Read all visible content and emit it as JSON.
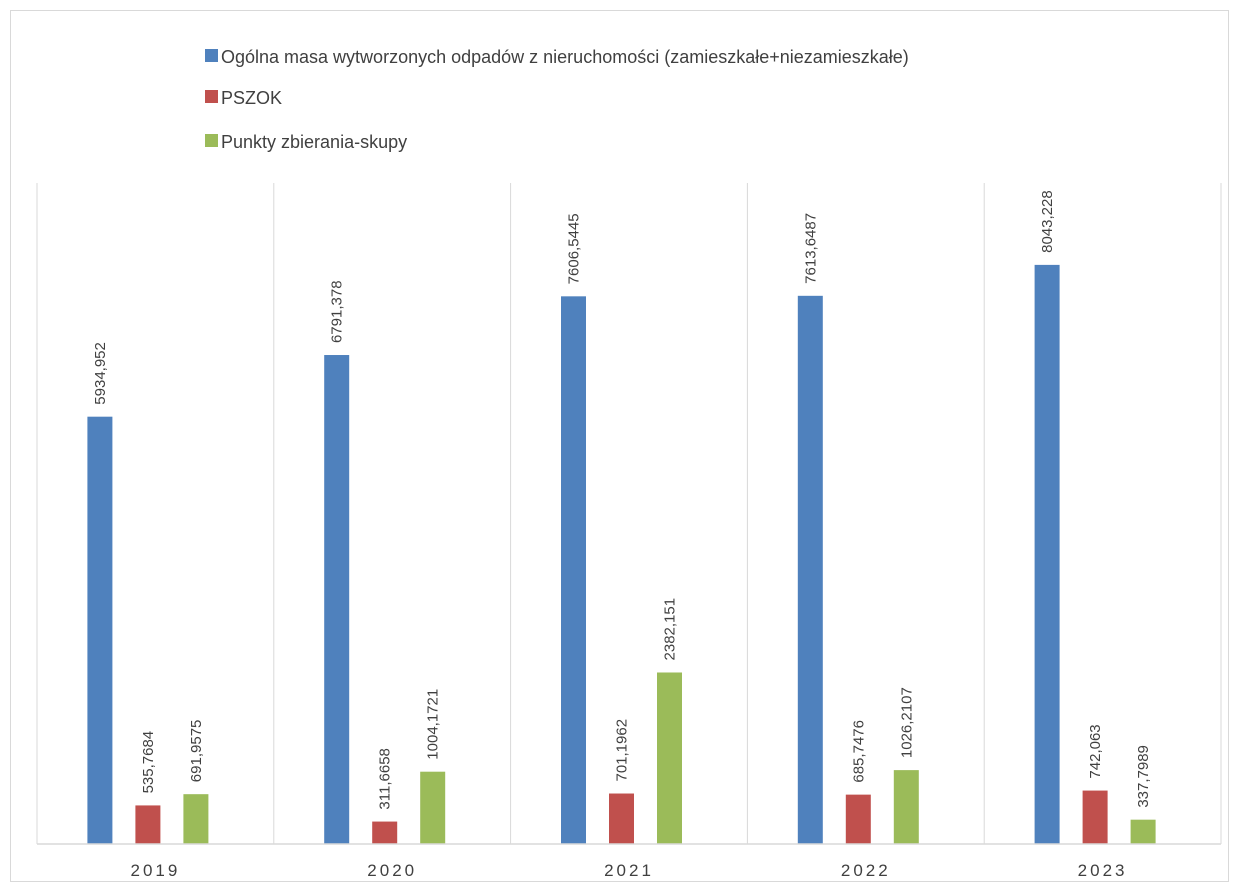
{
  "chart_data": {
    "type": "bar",
    "title": "",
    "xlabel": "",
    "ylabel": "",
    "categories": [
      "2019",
      "2020",
      "2021",
      "2022",
      "2023"
    ],
    "series": [
      {
        "name": "Ogólna masa wytworzonych odpadów z nieruchomości  (zamieszkałe+niezamieszkałe)",
        "color": "#4F81BD",
        "values": [
          5934.952,
          6791.378,
          7606.5445,
          7613.6487,
          8043.228
        ],
        "labels": [
          "5934,952",
          "6791,378",
          "7606,5445",
          "7613,6487",
          "8043,228"
        ]
      },
      {
        "name": "PSZOK",
        "color": "#C0504D",
        "values": [
          535.7684,
          311.6658,
          701.1962,
          685.7476,
          742.063
        ],
        "labels": [
          "535,7684",
          "311,6658",
          "701,1962",
          "685,7476",
          "742,063"
        ]
      },
      {
        "name": "Punkty zbierania-skupy",
        "color": "#9BBB59",
        "values": [
          691.9575,
          1004.1721,
          2382.151,
          1026.2107,
          337.7989
        ],
        "labels": [
          "691,9575",
          "1004,1721",
          "2382,151",
          "1026,2107",
          "337,7989"
        ]
      }
    ],
    "ylim": [
      0,
      9500
    ],
    "grid": "vertical category separators",
    "legend": "top-center",
    "data_labels": "rotated vertical above bars"
  }
}
